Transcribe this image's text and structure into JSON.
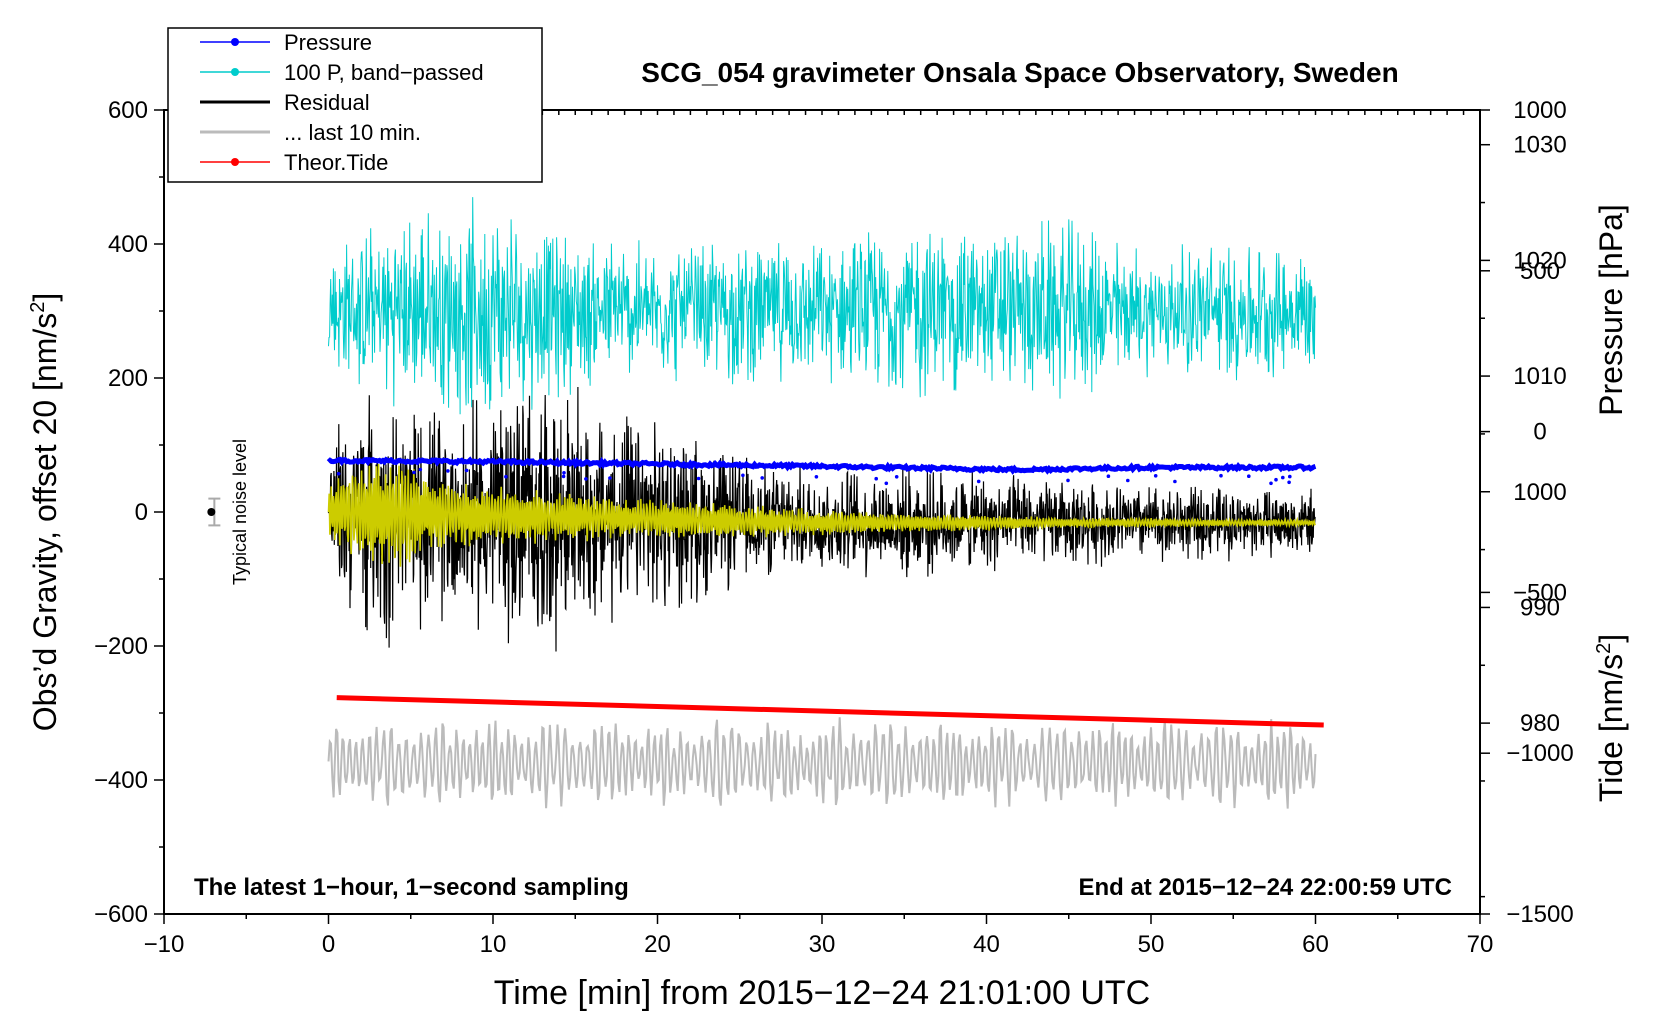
{
  "chart_data": {
    "type": "line",
    "title": "SCG_054 gravimeter Onsala Space Observatory, Sweden",
    "xlabel": "Time [min] from 2015−12−24 21:01:00 UTC",
    "ylabel_left_prefix": "Obs’d Gravity, offset 20 [nm/s",
    "ylabel_left_sup": "2",
    "ylabel_left_suffix": "]",
    "ylabel_pressure": "Pressure [hPa]",
    "ylabel_tide_prefix": "Tide [nm/s",
    "ylabel_tide_sup": "2",
    "ylabel_tide_suffix": "]",
    "xlim": [
      -10,
      70
    ],
    "ylim": [
      -600,
      600
    ],
    "pressure_axis_range": [
      963.5,
      1033
    ],
    "tide_axis_range": [
      -1500,
      1000
    ],
    "x_ticks": [
      -10,
      0,
      10,
      20,
      30,
      40,
      50,
      60,
      70
    ],
    "x_tick_labels": [
      "−10",
      "0",
      "10",
      "20",
      "30",
      "40",
      "50",
      "60",
      "70"
    ],
    "y_ticks": [
      600,
      400,
      200,
      0,
      -200,
      -400,
      -600
    ],
    "y_tick_labels": [
      "600",
      "400",
      "200",
      "0",
      "−200",
      "−400",
      "−600"
    ],
    "pressure_ticks": [
      1030,
      1020,
      1010,
      1000,
      990,
      980
    ],
    "pressure_tick_labels": [
      "1030",
      "1020",
      "1010",
      "1000",
      "990",
      "980"
    ],
    "tide_ticks": [
      1000,
      500,
      0,
      -500,
      -1000,
      -1500
    ],
    "tide_tick_labels": [
      "1000",
      "500",
      "0",
      "−500",
      "−1000",
      "−1500"
    ],
    "legend": {
      "position": "top-left",
      "entries": [
        {
          "label": "Pressure",
          "color": "#0000ff",
          "marker": true
        },
        {
          "label": "100 P, band−passed",
          "color": "#00cccc",
          "marker": true
        },
        {
          "label": "Residual",
          "color": "#000000",
          "marker": false
        },
        {
          "label": "... last 10 min.",
          "color": "#bbbbbb",
          "marker": false
        },
        {
          "label": "Theor.Tide",
          "color": "#ff0000",
          "marker": true
        }
      ]
    },
    "annotations": {
      "bottom_left": "The latest 1−hour, 1−second sampling",
      "bottom_right": "End at 2015−12−24 22:00:59 UTC",
      "noise_label": "Typical noise level"
    },
    "noise_marker": {
      "x": -7,
      "y": 0,
      "err": 20
    },
    "series": [
      {
        "name": "Pressure",
        "axis": "pressure_hPa",
        "color": "#0000ff",
        "x": [
          0,
          10,
          20,
          30,
          42,
          50,
          60
        ],
        "y": [
          1002.7,
          1002.6,
          1002.4,
          1002.2,
          1001.9,
          1002.1,
          1002.1
        ]
      },
      {
        "name": "100 P, band−passed",
        "axis": "gravity",
        "color": "#00cccc",
        "center": 300,
        "x": [
          0,
          5,
          10,
          15,
          20,
          25,
          30,
          35,
          40,
          45,
          50,
          55,
          60
        ],
        "amplitude": [
          110,
          160,
          180,
          130,
          110,
          120,
          110,
          150,
          140,
          150,
          100,
          120,
          100
        ]
      },
      {
        "name": "Residual",
        "axis": "gravity",
        "color": "#000000",
        "center": 0,
        "x": [
          0,
          3,
          6,
          9,
          12,
          15,
          18,
          21,
          24,
          27,
          30,
          35,
          40,
          45,
          50,
          55,
          60
        ],
        "amplitude": [
          130,
          220,
          170,
          190,
          230,
          200,
          170,
          150,
          120,
          90,
          90,
          90,
          80,
          70,
          65,
          60,
          55
        ]
      },
      {
        "name": "Residual (low-passed)",
        "axis": "gravity",
        "color": "#cccc00",
        "center": 0,
        "x": [
          0,
          2,
          4,
          6,
          10,
          14,
          18,
          22,
          26,
          30,
          35,
          40,
          45,
          50,
          55,
          60
        ],
        "amplitude": [
          50,
          75,
          90,
          55,
          45,
          40,
          30,
          30,
          25,
          20,
          15,
          12,
          8,
          8,
          6,
          5
        ]
      },
      {
        "name": "... last 10 min.",
        "axis": "gravity",
        "color": "#bbbbbb",
        "center": -375,
        "x_range": [
          0,
          60
        ],
        "amplitude": 65
      },
      {
        "name": "Theor.Tide",
        "axis": "gravity",
        "color": "#ff0000",
        "x": [
          0.5,
          60.5
        ],
        "y": [
          -277,
          -318
        ]
      }
    ]
  }
}
